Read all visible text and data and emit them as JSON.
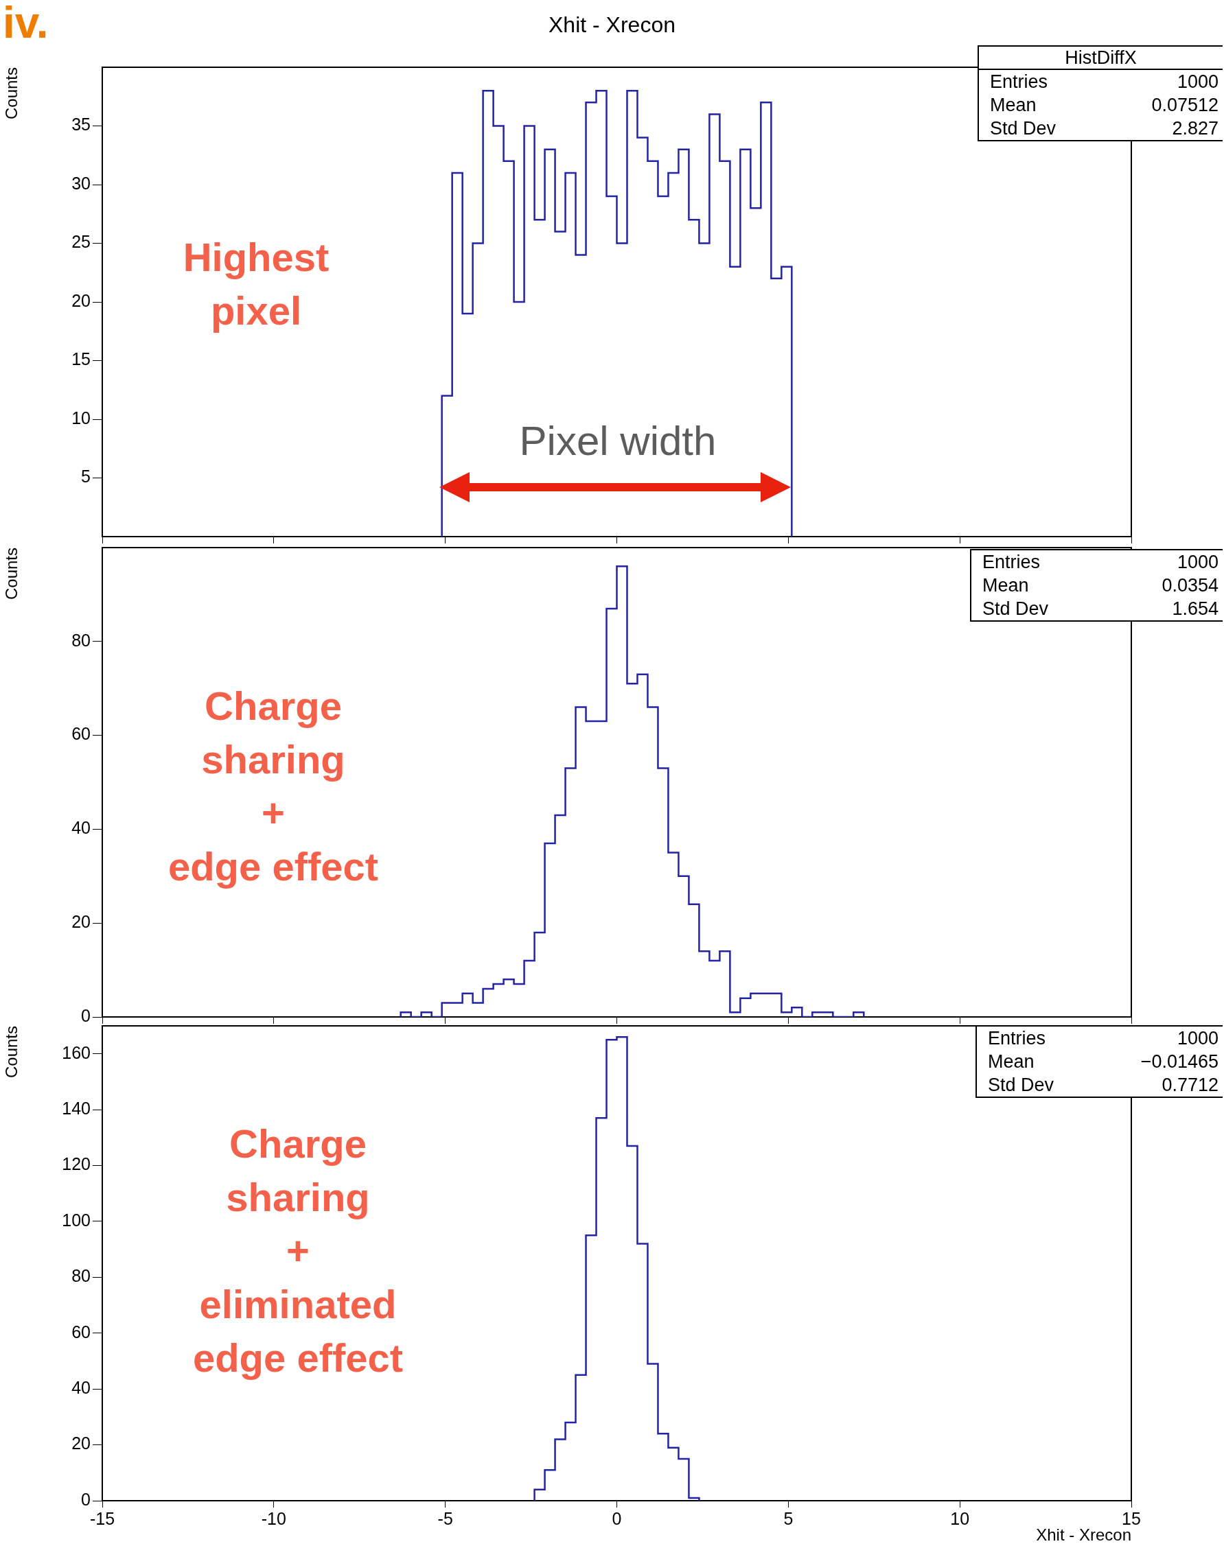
{
  "chart_data": [
    {
      "type": "histogram",
      "title": "Xhit - Xrecon",
      "ylabel": "Counts",
      "color": "#2323a8",
      "bins": [
        -5.1,
        -4.8,
        -4.5,
        -4.2,
        -3.9,
        -3.6,
        -3.3,
        -3.0,
        -2.7,
        -2.4,
        -2.1,
        -1.8,
        -1.5,
        -1.2,
        -0.9,
        -0.6,
        -0.3,
        0,
        0.3,
        0.6,
        0.9,
        1.2,
        1.5,
        1.8,
        2.1,
        2.4,
        2.7,
        3.0,
        3.3,
        3.6,
        3.9,
        4.2,
        4.5,
        4.8,
        5.1
      ],
      "values": [
        12,
        31,
        19,
        25,
        38,
        35,
        32,
        20,
        35,
        27,
        33,
        26,
        31,
        24,
        37,
        38,
        29,
        25,
        38,
        34,
        32,
        29,
        31,
        33,
        27,
        25,
        36,
        32,
        23,
        33,
        28,
        37,
        22,
        23
      ],
      "xlim": [
        -15,
        15
      ],
      "xticks": [
        -15,
        -10,
        -5,
        0,
        5,
        10,
        15
      ],
      "ylim": [
        0,
        40
      ],
      "yticks": [
        5,
        10,
        15,
        20,
        25,
        30,
        35
      ],
      "tick_labels": "y",
      "annotations": [
        "iv.",
        "Highest\npixel",
        "Pixel width",
        "HistDiffX",
        "Entries",
        "1000",
        "Mean",
        "0.07512",
        "Std Dev",
        "2.827"
      ]
    },
    {
      "type": "histogram",
      "ylabel": "Counts",
      "color": "#2323a8",
      "bins": [
        -6.3,
        -6.0,
        -5.7,
        -5.4,
        -5.1,
        -4.8,
        -4.5,
        -4.2,
        -3.9,
        -3.6,
        -3.3,
        -3.0,
        -2.7,
        -2.4,
        -2.1,
        -1.8,
        -1.5,
        -1.2,
        -0.9,
        -0.6,
        -0.3,
        0,
        0.3,
        0.6,
        0.9,
        1.2,
        1.5,
        1.8,
        2.1,
        2.4,
        2.7,
        3.0,
        3.3,
        3.6,
        3.9,
        4.2,
        4.5,
        4.8,
        5.1,
        5.4,
        5.7,
        6.0,
        6.3,
        6.6,
        6.9,
        7.2
      ],
      "values": [
        1,
        0,
        1,
        0,
        3,
        3,
        5,
        3,
        6,
        7,
        8,
        7,
        12,
        18,
        37,
        43,
        53,
        66,
        63,
        63,
        87,
        96,
        71,
        73,
        66,
        53,
        35,
        30,
        24,
        14,
        12,
        14,
        1,
        4,
        5,
        5,
        5,
        1,
        2,
        0,
        1,
        1,
        0,
        0,
        1
      ],
      "xlim": [
        -15,
        15
      ],
      "xticks": [
        -15,
        -10,
        -5,
        0,
        5,
        10,
        15
      ],
      "ylim": [
        0,
        100
      ],
      "yticks": [
        0,
        20,
        40,
        60,
        80
      ],
      "tick_labels": "y",
      "annotations": [
        "Charge\nsharing\n+\nedge effect",
        "Entries",
        "1000",
        "Mean",
        "0.0354",
        "Std Dev",
        "1.654"
      ]
    },
    {
      "type": "histogram",
      "ylabel": "Counts",
      "xlabel": "Xhit - Xrecon",
      "color": "#2323a8",
      "bins": [
        -2.4,
        -2.1,
        -1.8,
        -1.5,
        -1.2,
        -0.9,
        -0.6,
        -0.3,
        0,
        0.3,
        0.6,
        0.9,
        1.2,
        1.5,
        1.8,
        2.1,
        2.4
      ],
      "values": [
        4,
        11,
        22,
        28,
        45,
        95,
        137,
        165,
        166,
        127,
        92,
        49,
        24,
        19,
        15,
        1
      ],
      "xlim": [
        -15,
        15
      ],
      "xticks": [
        -15,
        -10,
        -5,
        0,
        5,
        10,
        15
      ],
      "ylim": [
        0,
        170
      ],
      "yticks": [
        0,
        20,
        40,
        60,
        80,
        100,
        120,
        140,
        160
      ],
      "annotations": [
        "Charge\nsharing\n+\neliminated\nedge effect",
        "Entries",
        "1000",
        "Mean",
        "−0.01465",
        "Std Dev",
        "0.7712"
      ]
    }
  ]
}
